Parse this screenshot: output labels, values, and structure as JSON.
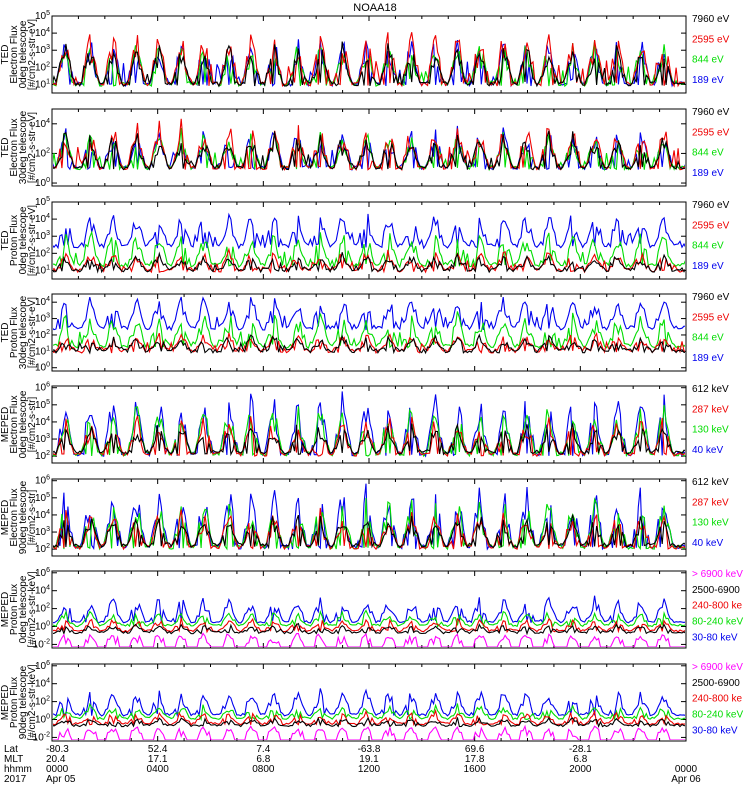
{
  "title": "NOAA18",
  "colors": {
    "black": "#000000",
    "red": "#ee0000",
    "green": "#00dd00",
    "blue": "#0000ee",
    "magenta": "#ff00ff"
  },
  "chart_data": [
    {
      "type": "line",
      "ylabel": [
        "TED",
        "Electron Flux",
        "0deg telescope",
        "[#/cm2-s-str-eV]"
      ],
      "ylog": true,
      "ytick_exponents": [
        1,
        2,
        3,
        4,
        5
      ],
      "yrange_exp": [
        0.5,
        5.0
      ],
      "legend": [
        {
          "label": "7960 eV",
          "color": "black"
        },
        {
          "label": "2595 eV",
          "color": "red"
        },
        {
          "label": "844 eV",
          "color": "green"
        },
        {
          "label": "189 eV",
          "color": "blue"
        }
      ]
    },
    {
      "type": "line",
      "ylabel": [
        "TED",
        "Electron Flux",
        "30deg telescope",
        "[#/cm2-s-str-eV]"
      ],
      "ylog": true,
      "ytick_exponents": [
        0,
        2,
        4
      ],
      "yrange_exp": [
        -0.2,
        5.0
      ],
      "legend": [
        {
          "label": "7960 eV",
          "color": "black"
        },
        {
          "label": "2595 eV",
          "color": "red"
        },
        {
          "label": "844 eV",
          "color": "green"
        },
        {
          "label": "189 eV",
          "color": "blue"
        }
      ]
    },
    {
      "type": "line",
      "ylabel": [
        "TED",
        "Proton Flux",
        "0deg telescope",
        "[#/cm2-s-str-eV]"
      ],
      "ylog": true,
      "ytick_exponents": [
        1,
        2,
        3,
        4,
        5
      ],
      "yrange_exp": [
        0.5,
        5.0
      ],
      "legend": [
        {
          "label": "7960 eV",
          "color": "black"
        },
        {
          "label": "2595 eV",
          "color": "red"
        },
        {
          "label": "844 eV",
          "color": "green"
        },
        {
          "label": "189 eV",
          "color": "blue"
        }
      ]
    },
    {
      "type": "line",
      "ylabel": [
        "TED",
        "Proton Flux",
        "30deg telescope",
        "[#/cm2-s-str-eV]"
      ],
      "ylog": true,
      "ytick_exponents": [
        0,
        1,
        2,
        3,
        4
      ],
      "yrange_exp": [
        -0.2,
        4.5
      ],
      "legend": [
        {
          "label": "7960 eV",
          "color": "black"
        },
        {
          "label": "2595 eV",
          "color": "red"
        },
        {
          "label": "844 eV",
          "color": "green"
        },
        {
          "label": "189 eV",
          "color": "blue"
        }
      ]
    },
    {
      "type": "line",
      "ylabel": [
        "MEPED",
        "Electron Flux",
        "0deg telescope",
        "[#/cm2-s-str]"
      ],
      "ylog": true,
      "ytick_exponents": [
        2,
        3,
        4,
        5,
        6
      ],
      "yrange_exp": [
        1.6,
        6.1
      ],
      "legend": [
        {
          "label": "612 keV",
          "color": "black"
        },
        {
          "label": "287 keV",
          "color": "red"
        },
        {
          "label": "130 keV",
          "color": "green"
        },
        {
          "label": "40 keV",
          "color": "blue"
        }
      ]
    },
    {
      "type": "line",
      "ylabel": [
        "MEPED",
        "Electron Flux",
        "90deg telescope",
        "[#/cm2-s-str]"
      ],
      "ylog": true,
      "ytick_exponents": [
        2,
        3,
        4,
        5,
        6
      ],
      "yrange_exp": [
        1.6,
        6.1
      ],
      "legend": [
        {
          "label": "612 keV",
          "color": "black"
        },
        {
          "label": "287 keV",
          "color": "red"
        },
        {
          "label": "130 keV",
          "color": "green"
        },
        {
          "label": "40 keV",
          "color": "blue"
        }
      ]
    },
    {
      "type": "line",
      "ylabel": [
        "MEPED",
        "Proton Flux",
        "0deg telescope",
        "[#/cm2-s-str-keV]"
      ],
      "ylog": true,
      "ytick_exponents": [
        -2,
        0,
        2,
        4,
        6
      ],
      "yrange_exp": [
        -2.4,
        6.2
      ],
      "legend": [
        {
          "label": "> 6900 keV",
          "color": "magenta"
        },
        {
          "label": "2500-6900",
          "color": "black"
        },
        {
          "label": "240-800 ke",
          "color": "red"
        },
        {
          "label": "80-240 keV",
          "color": "green"
        },
        {
          "label": "30-80 keV",
          "color": "blue"
        }
      ]
    },
    {
      "type": "line",
      "ylabel": [
        "MEPED",
        "Proton Flux",
        "90deg telescope",
        "[#/cm2-s-str-keV]"
      ],
      "ylog": true,
      "ytick_exponents": [
        -2,
        0,
        2,
        4,
        6
      ],
      "yrange_exp": [
        -2.4,
        6.2
      ],
      "legend": [
        {
          "label": "> 6900 keV",
          "color": "magenta"
        },
        {
          "label": "2500-6900",
          "color": "black"
        },
        {
          "label": "240-800 ke",
          "color": "red"
        },
        {
          "label": "80-240 keV",
          "color": "green"
        },
        {
          "label": "30-80 keV",
          "color": "blue"
        }
      ]
    }
  ],
  "xaxis": {
    "row_labels": [
      "Lat",
      "MLT",
      "hhmm",
      "2017"
    ],
    "ticks": [
      {
        "hours": 0,
        "lat": "-80.3",
        "mlt": "20.4",
        "hhmm": "0000",
        "date": "Apr 05"
      },
      {
        "hours": 4,
        "lat": "52.4",
        "mlt": "17.1",
        "hhmm": "0400",
        "date": ""
      },
      {
        "hours": 8,
        "lat": "7.4",
        "mlt": "6.8",
        "hhmm": "0800",
        "date": ""
      },
      {
        "hours": 12,
        "lat": "-63.8",
        "mlt": "19.1",
        "hhmm": "1200",
        "date": ""
      },
      {
        "hours": 16,
        "lat": "69.6",
        "mlt": "17.8",
        "hhmm": "1600",
        "date": ""
      },
      {
        "hours": 20,
        "lat": "-28.1",
        "mlt": "6.8",
        "hhmm": "2000",
        "date": ""
      },
      {
        "hours": 24,
        "lat": "",
        "mlt": "",
        "hhmm": "0000",
        "date": "Apr 06"
      }
    ]
  }
}
